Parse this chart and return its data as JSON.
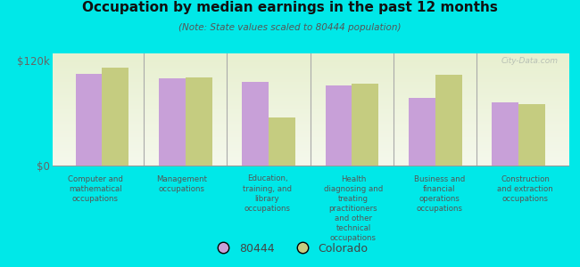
{
  "title": "Occupation by median earnings in the past 12 months",
  "subtitle": "(Note: State values scaled to 80444 population)",
  "background_color": "#00e8e8",
  "plot_bg_gradient_top": "#e8f0d0",
  "plot_bg_gradient_bottom": "#f5f8ec",
  "categories": [
    "Computer and\nmathematical\noccupations",
    "Management\noccupations",
    "Education,\ntraining, and\nlibrary\noccupations",
    "Health\ndiagnosing and\ntreating\npractitioners\nand other\ntechnical\noccupations",
    "Business and\nfinancial\noperations\noccupations",
    "Construction\nand extraction\noccupations"
  ],
  "values_80444": [
    105000,
    100000,
    95000,
    91000,
    77000,
    72000
  ],
  "values_colorado": [
    112000,
    101000,
    55000,
    93000,
    104000,
    70000
  ],
  "color_80444": "#c8a0d8",
  "color_colorado": "#c5cc80",
  "ylim": [
    0,
    128000
  ],
  "ytick_val": 120000,
  "ytick_labels": [
    "$0",
    "$120k"
  ],
  "legend_80444": "80444",
  "legend_colorado": "Colorado",
  "watermark": "City-Data.com"
}
